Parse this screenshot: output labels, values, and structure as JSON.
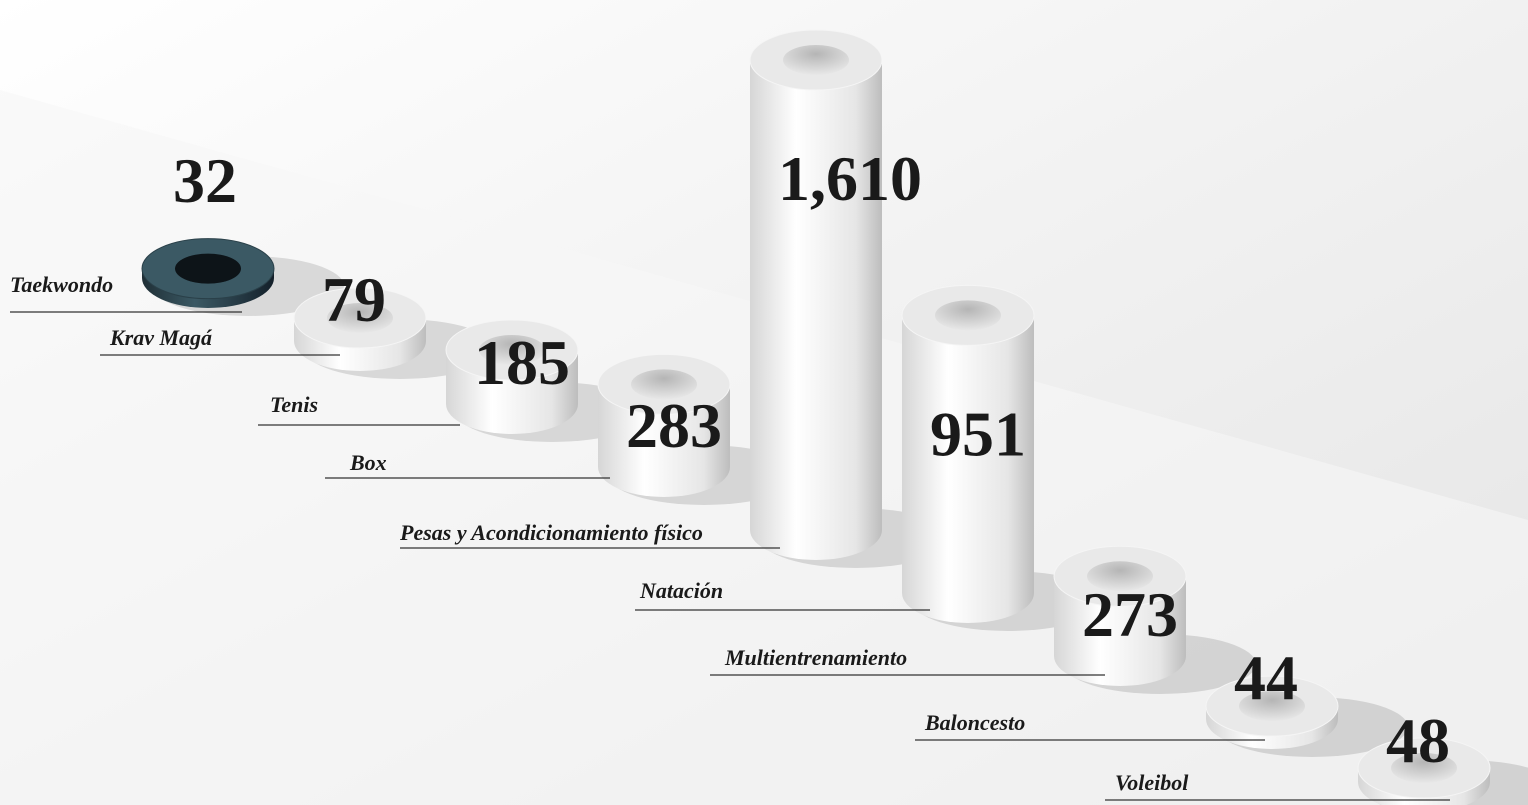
{
  "chart_data": {
    "type": "bar",
    "categories": [
      "Taekwondo",
      "Krav Magá",
      "Tenis",
      "Box",
      "Pesas y Acondicionamiento físico",
      "Natación",
      "Multientrenamiento",
      "Baloncesto",
      "Voleibol"
    ],
    "values": [
      32,
      79,
      185,
      283,
      1610,
      951,
      273,
      44,
      48
    ],
    "value_labels": [
      "32",
      "79",
      "185",
      "283",
      "1,610",
      "951",
      "273",
      "44",
      "48"
    ],
    "colors": [
      "#3b5964",
      "#e9e9e9",
      "#e9e9e9",
      "#e9e9e9",
      "#e9e9e9",
      "#e9e9e9",
      "#e9e9e9",
      "#e9e9e9",
      "#e9e9e9"
    ]
  }
}
